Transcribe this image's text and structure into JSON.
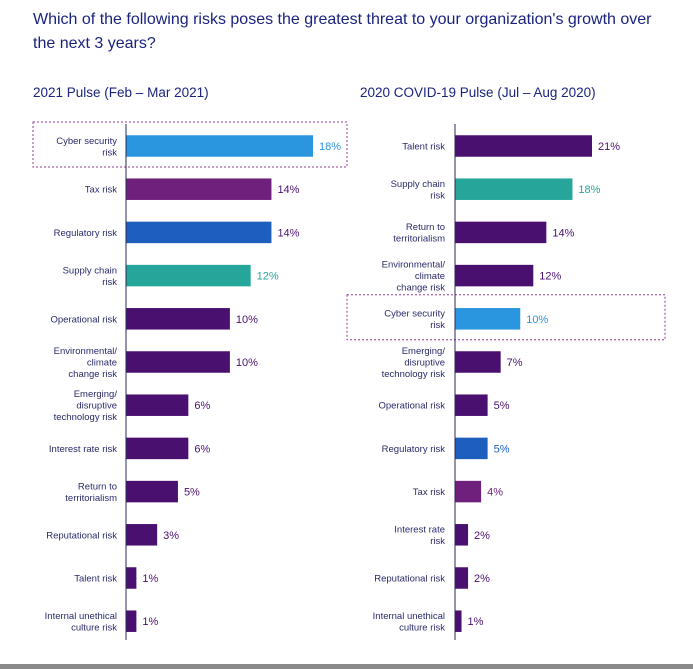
{
  "page_title": "Which of the following risks poses the greatest threat to your organization's growth over the next 3 years?",
  "colors": {
    "purple_dark": "#4a1070",
    "purple_mid": "#6e207c",
    "cyan_blue": "#2a96e0",
    "royal_blue": "#1e5fbe",
    "teal": "#26a59a",
    "highlight_border": "#9a3a9a"
  },
  "chart_data": [
    {
      "type": "bar",
      "orientation": "horizontal",
      "title": "2021 Pulse (Feb – Mar 2021)",
      "xlim": [
        0,
        18
      ],
      "highlight": "Cyber security risk",
      "categories": [
        "Cyber security risk",
        "Tax risk",
        "Regulatory risk",
        "Supply chain risk",
        "Operational risk",
        "Environmental/ climate change risk",
        "Emerging/ disruptive technology risk",
        "Interest rate risk",
        "Return to territorialism",
        "Reputational risk",
        "Talent risk",
        "Internal unethical culture risk"
      ],
      "label_lines": [
        [
          "Cyber security",
          "risk"
        ],
        [
          "Tax risk"
        ],
        [
          "Regulatory risk"
        ],
        [
          "Supply chain",
          "risk"
        ],
        [
          "Operational risk"
        ],
        [
          "Environmental/",
          "climate",
          "change risk"
        ],
        [
          "Emerging/",
          "disruptive",
          "technology risk"
        ],
        [
          "Interest rate risk"
        ],
        [
          "Return to",
          "territorialism"
        ],
        [
          "Reputational risk"
        ],
        [
          "Talent risk"
        ],
        [
          "Internal unethical",
          "culture risk"
        ]
      ],
      "values": [
        18,
        14,
        14,
        12,
        10,
        10,
        6,
        6,
        5,
        3,
        1,
        1
      ],
      "value_labels": [
        "18%",
        "14%",
        "14%",
        "12%",
        "10%",
        "10%",
        "6%",
        "6%",
        "5%",
        "3%",
        "1%",
        "1%"
      ],
      "colors": [
        "#2a96e0",
        "#6e207c",
        "#1e5fbe",
        "#26a59a",
        "#4a1070",
        "#4a1070",
        "#4a1070",
        "#4a1070",
        "#4a1070",
        "#4a1070",
        "#4a1070",
        "#4a1070"
      ],
      "label_colors": [
        "#2a96e0",
        "#4a1070",
        "#4a1070",
        "#26a59a",
        "#4a1070",
        "#4a1070",
        "#4a1070",
        "#4a1070",
        "#4a1070",
        "#4a1070",
        "#4a1070",
        "#4a1070"
      ]
    },
    {
      "type": "bar",
      "orientation": "horizontal",
      "title": "2020 COVID-19 Pulse (Jul – Aug 2020)",
      "xlim": [
        0,
        18
      ],
      "highlight": "Cyber security risk",
      "categories": [
        "Talent risk",
        "Supply chain risk",
        "Return to territorialism",
        "Environmental/ climate change risk",
        "Cyber security risk",
        "Emerging/ disruptive technology risk",
        "Operational risk",
        "Regulatory risk",
        "Tax risk",
        "Interest rate risk",
        "Reputational risk",
        "Internal unethical culture risk"
      ],
      "label_lines": [
        [
          "Talent risk"
        ],
        [
          "Supply chain",
          "risk"
        ],
        [
          "Return to",
          "territorialism"
        ],
        [
          "Environmental/",
          "climate",
          "change risk"
        ],
        [
          "Cyber security",
          "risk"
        ],
        [
          "Emerging/",
          "disruptive",
          "technology risk"
        ],
        [
          "Operational risk"
        ],
        [
          "Regulatory risk"
        ],
        [
          "Tax risk"
        ],
        [
          "Interest rate",
          "risk"
        ],
        [
          "Reputational risk"
        ],
        [
          "Internal unethical",
          "culture risk"
        ]
      ],
      "values": [
        21,
        18,
        14,
        12,
        10,
        7,
        5,
        5,
        4,
        2,
        2,
        1
      ],
      "value_labels": [
        "21%",
        "18%",
        "14%",
        "12%",
        "10%",
        "7%",
        "5%",
        "5%",
        "4%",
        "2%",
        "2%",
        "1%"
      ],
      "colors": [
        "#4a1070",
        "#26a59a",
        "#4a1070",
        "#4a1070",
        "#2a96e0",
        "#4a1070",
        "#4a1070",
        "#1e5fbe",
        "#6e207c",
        "#4a1070",
        "#4a1070",
        "#4a1070"
      ],
      "label_colors": [
        "#4a1070",
        "#26a59a",
        "#4a1070",
        "#4a1070",
        "#2a96e0",
        "#4a1070",
        "#4a1070",
        "#1e5fbe",
        "#6e207c",
        "#4a1070",
        "#4a1070",
        "#4a1070"
      ]
    }
  ]
}
